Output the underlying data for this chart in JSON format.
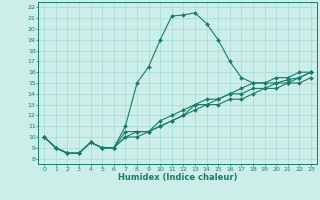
{
  "xlabel": "Humidex (Indice chaleur)",
  "bg_color": "#cceee8",
  "grid_color": "#aadddd",
  "line_color": "#1a7a6e",
  "text_color": "#1a7a6e",
  "xlim": [
    -0.5,
    23.5
  ],
  "ylim": [
    7.5,
    22.5
  ],
  "yticks": [
    8,
    9,
    10,
    11,
    12,
    13,
    14,
    15,
    16,
    17,
    18,
    19,
    20,
    21,
    22
  ],
  "xticks": [
    0,
    1,
    2,
    3,
    4,
    5,
    6,
    7,
    8,
    9,
    10,
    11,
    12,
    13,
    14,
    15,
    16,
    17,
    18,
    19,
    20,
    21,
    22,
    23
  ],
  "series": [
    {
      "x": [
        0,
        1,
        2,
        3,
        4,
        5,
        6,
        7,
        8,
        9,
        10,
        11,
        12,
        13,
        14,
        15,
        16,
        17,
        18,
        19,
        20,
        21,
        22,
        23
      ],
      "y": [
        10,
        9,
        8.5,
        8.5,
        9.5,
        9,
        9,
        11,
        15,
        16.5,
        19,
        21.2,
        21.3,
        21.5,
        20.5,
        19,
        17,
        15.5,
        15,
        15,
        15,
        15.3,
        15.5,
        16
      ]
    },
    {
      "x": [
        0,
        1,
        2,
        3,
        4,
        5,
        6,
        7,
        8,
        9,
        10,
        11,
        12,
        13,
        14,
        15,
        16,
        17,
        18,
        19,
        20,
        21,
        22,
        23
      ],
      "y": [
        10,
        9,
        8.5,
        8.5,
        9.5,
        9,
        9,
        10.5,
        10.5,
        10.5,
        11,
        11.5,
        12,
        12.5,
        13,
        13,
        13.5,
        13.5,
        14,
        14.5,
        14.5,
        15,
        15,
        15.5
      ]
    },
    {
      "x": [
        0,
        1,
        2,
        3,
        4,
        5,
        6,
        7,
        8,
        9,
        10,
        11,
        12,
        13,
        14,
        15,
        16,
        17,
        18,
        19,
        20,
        21,
        22,
        23
      ],
      "y": [
        10,
        9,
        8.5,
        8.5,
        9.5,
        9,
        9,
        10,
        10.5,
        10.5,
        11.5,
        12,
        12.5,
        13,
        13,
        13.5,
        14,
        14,
        14.5,
        14.5,
        15,
        15,
        15.5,
        16
      ]
    },
    {
      "x": [
        0,
        1,
        2,
        3,
        4,
        5,
        6,
        7,
        8,
        9,
        10,
        11,
        12,
        13,
        14,
        15,
        16,
        17,
        18,
        19,
        20,
        21,
        22,
        23
      ],
      "y": [
        10,
        9,
        8.5,
        8.5,
        9.5,
        9,
        9,
        10,
        10,
        10.5,
        11,
        11.5,
        12,
        13,
        13.5,
        13.5,
        14,
        14.5,
        15,
        15,
        15.5,
        15.5,
        16,
        16
      ]
    }
  ]
}
